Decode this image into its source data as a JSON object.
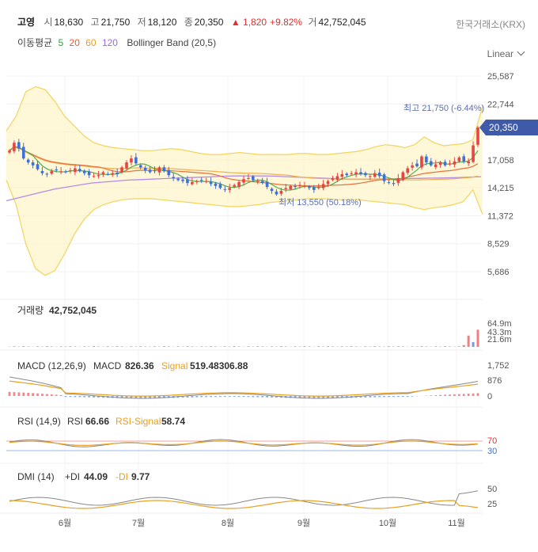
{
  "header": {
    "name": "고영",
    "open_label": "시",
    "open": "18,630",
    "high_label": "고",
    "high": "21,750",
    "low_label": "저",
    "low": "18,120",
    "close_label": "종",
    "close": "20,350",
    "change": "▲ 1,820",
    "change_pct": "+9.82%",
    "volume_label": "거",
    "volume": "42,752,045",
    "exchange": "한국거래소(KRX)"
  },
  "indicators": {
    "ma_label": "이동평균",
    "ma_periods": [
      "5",
      "20",
      "60",
      "120"
    ],
    "ma_colors": [
      "#2e9e3a",
      "#e85c2a",
      "#e8a020",
      "#9b6ad6"
    ],
    "bollinger": "Bollinger Band (20,5)"
  },
  "scale_toggle": "Linear",
  "chart_data": [
    {
      "type": "candlestick",
      "y_ticks": [
        "25,587",
        "22,744",
        "19,901",
        "17,058",
        "14,215",
        "11,372",
        "8,529",
        "5,686"
      ],
      "ylim": [
        4500,
        26500
      ],
      "x_ticks": [
        "6월",
        "7월",
        "8월",
        "9월",
        "10월",
        "11월"
      ],
      "current_price": "20,350",
      "annotations": {
        "high": "최고 21,750 (-6.44%)",
        "low": "최저 13,550 (50.18%)"
      },
      "close_series": [
        18000,
        18800,
        18200,
        17200,
        16800,
        16500,
        16100,
        15700,
        15600,
        15900,
        16000,
        15900,
        15800,
        16000,
        16200,
        15900,
        15700,
        15500,
        15400,
        15500,
        15800,
        15600,
        15700,
        15600,
        16300,
        16800,
        17200,
        16700,
        16300,
        16000,
        15800,
        15900,
        16300,
        15900,
        15500,
        15200,
        15000,
        14900,
        14700,
        14800,
        14900,
        15000,
        14900,
        14600,
        14400,
        14200,
        14000,
        14200,
        14500,
        14800,
        15100,
        15200,
        15000,
        14900,
        14700,
        14300,
        13900,
        13550,
        13900,
        14200,
        14400,
        14300,
        14500,
        14400,
        14200,
        14000,
        14300,
        14600,
        14900,
        15200,
        15400,
        15600,
        15500,
        15700,
        15800,
        15600,
        15500,
        15400,
        15700,
        15400,
        14900,
        14700,
        14600,
        15200,
        15800,
        16200,
        16500,
        16400,
        17400,
        16800,
        16500,
        16600,
        16800,
        16500,
        16700,
        16900,
        17300,
        16900,
        16900,
        18530,
        20350
      ],
      "ma120_series": [
        12900,
        13200,
        13500,
        13800,
        14100,
        14300,
        14500,
        14700,
        14800,
        14900,
        15000,
        15050,
        15100,
        15150,
        15200,
        15250,
        15300,
        15350,
        15400,
        15420,
        15430,
        15420,
        15400,
        15350,
        15300,
        15250,
        15200,
        15150,
        15100,
        15100,
        15100,
        15120,
        15140,
        15160,
        15180,
        15200,
        15220,
        15250,
        15300,
        15350
      ],
      "bb_upper": [
        20000,
        21500,
        24000,
        24500,
        24200,
        23000,
        21500,
        20500,
        19500,
        18800,
        18500,
        18300,
        18200,
        18100,
        18000,
        18000,
        18100,
        18200,
        18100,
        17900,
        17700,
        17600,
        17600,
        17700,
        17800,
        17700,
        17600,
        17600,
        17600,
        17600,
        17700,
        17700,
        17600,
        17600,
        17700,
        17800,
        17900,
        18100,
        18400,
        18600,
        18500,
        18300,
        18600,
        19400,
        18800,
        18500,
        18600,
        18700,
        19100,
        22500
      ],
      "bb_lower": [
        15000,
        12500,
        8500,
        6000,
        5300,
        5800,
        7500,
        9500,
        11000,
        12000,
        12500,
        12800,
        13000,
        13100,
        13100,
        13100,
        13000,
        12900,
        12800,
        12700,
        12600,
        12500,
        12400,
        12300,
        12300,
        12400,
        12500,
        12700,
        12800,
        12900,
        13000,
        13100,
        13100,
        13100,
        13000,
        13000,
        13000,
        12900,
        12800,
        12700,
        12600,
        12500,
        12200,
        12000,
        12200,
        12300,
        12500,
        12800,
        14000,
        11500
      ]
    },
    {
      "type": "bar",
      "title": "거래량",
      "value": "42,752,045",
      "y_ticks": [
        "64.9m",
        "43.3m",
        "21.6m"
      ],
      "last_values_m": [
        4.5,
        28.0,
        12.0,
        42.75
      ]
    },
    {
      "type": "line",
      "title": "MACD (12,26,9)",
      "series": [
        {
          "name": "MACD",
          "value": "826.36"
        },
        {
          "name": "Signal",
          "value": "519.48306.88"
        }
      ],
      "y_ticks": [
        "1,752",
        "876",
        "0"
      ]
    },
    {
      "type": "line",
      "title": "RSI (14,9)",
      "series": [
        {
          "name": "RSI",
          "value": "66.66"
        },
        {
          "name": "RSI-Signal",
          "value": "58.74"
        }
      ],
      "y_ticks": [
        "70",
        "30"
      ]
    },
    {
      "type": "line",
      "title": "DMI (14)",
      "series": [
        {
          "name": "+DI",
          "value": "44.09"
        },
        {
          "name": "-DI",
          "value": "9.77"
        }
      ],
      "y_ticks": [
        "50",
        "25"
      ]
    }
  ]
}
